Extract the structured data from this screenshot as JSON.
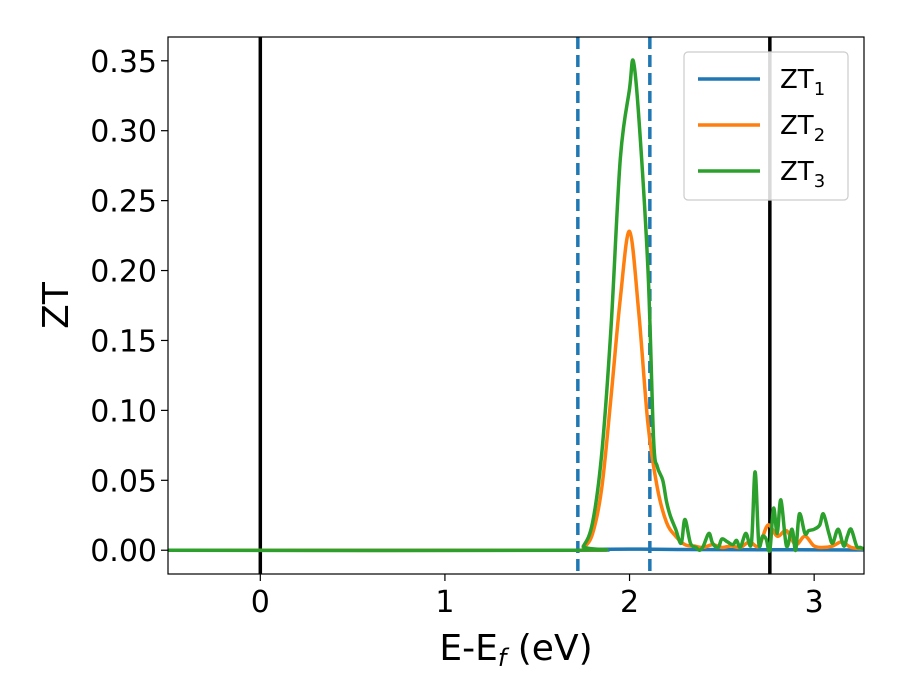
{
  "chart_data": {
    "type": "line",
    "xlabel": {
      "main": "E-E",
      "sub": "f",
      "suffix": " (eV)"
    },
    "ylabel": "ZT",
    "xlim": [
      -0.5,
      3.27
    ],
    "ylim": [
      -0.017,
      0.367
    ],
    "xticks": [
      0,
      1,
      2,
      3
    ],
    "xtick_labels": [
      "0",
      "1",
      "2",
      "3"
    ],
    "yticks": [
      0.0,
      0.05,
      0.1,
      0.15,
      0.2,
      0.25,
      0.3,
      0.35
    ],
    "ytick_labels": [
      "0.00",
      "0.05",
      "0.10",
      "0.15",
      "0.20",
      "0.25",
      "0.30",
      "0.35"
    ],
    "grid": false,
    "legend_position": "top-right",
    "vlines": [
      {
        "x": 0.0,
        "style": "solid",
        "color": "#000000"
      },
      {
        "x": 2.76,
        "style": "solid",
        "color": "#000000"
      },
      {
        "x": 1.72,
        "style": "dashed",
        "color": "#1f77b4"
      },
      {
        "x": 2.11,
        "style": "dashed",
        "color": "#1f77b4"
      }
    ],
    "series": [
      {
        "name": "ZT",
        "name_sub": "1",
        "color": "#1f77b4",
        "x": [
          -0.5,
          1.7,
          1.8,
          2.0,
          2.2,
          2.5,
          3.27
        ],
        "y": [
          0.0,
          0.0,
          0.0006,
          0.0008,
          0.0006,
          0.0004,
          0.0002
        ]
      },
      {
        "name": "ZT",
        "name_sub": "2",
        "color": "#ff7f0e",
        "x": [
          -0.5,
          1.7,
          1.75,
          1.8,
          1.85,
          1.9,
          1.95,
          2.0,
          2.05,
          2.1,
          2.15,
          2.2,
          2.25,
          2.3,
          2.35,
          2.4,
          2.45,
          2.5,
          2.55,
          2.6,
          2.65,
          2.7,
          2.75,
          2.8,
          2.85,
          2.9,
          2.95,
          3.0,
          3.05,
          3.1,
          3.15,
          3.2,
          3.27
        ],
        "y": [
          0.0,
          0.0,
          0.002,
          0.012,
          0.045,
          0.11,
          0.18,
          0.228,
          0.17,
          0.09,
          0.045,
          0.02,
          0.01,
          0.004,
          0.003,
          0.002,
          0.004,
          0.002,
          0.003,
          0.002,
          0.006,
          0.003,
          0.018,
          0.01,
          0.014,
          0.004,
          0.01,
          0.003,
          0.002,
          0.003,
          0.006,
          0.002,
          0.001
        ]
      },
      {
        "name": "ZT",
        "name_sub": "3",
        "color": "#2ca02c",
        "x": [
          -0.5,
          1.7,
          1.75,
          1.8,
          1.85,
          1.9,
          1.95,
          2.0,
          2.02,
          2.05,
          2.1,
          2.13,
          2.15,
          2.18,
          2.2,
          2.22,
          2.25,
          2.28,
          2.3,
          2.33,
          2.36,
          2.38,
          2.4,
          2.43,
          2.45,
          2.48,
          2.5,
          2.53,
          2.56,
          2.58,
          2.6,
          2.63,
          2.66,
          2.68,
          2.7,
          2.72,
          2.74,
          2.76,
          2.78,
          2.8,
          2.82,
          2.85,
          2.88,
          2.9,
          2.92,
          2.95,
          2.97,
          3.0,
          3.03,
          3.05,
          3.08,
          3.1,
          3.13,
          3.16,
          3.18,
          3.2,
          3.23,
          3.25,
          3.27
        ],
        "y": [
          0.0,
          0.0,
          0.003,
          0.02,
          0.07,
          0.16,
          0.28,
          0.33,
          0.35,
          0.31,
          0.2,
          0.08,
          0.06,
          0.05,
          0.035,
          0.025,
          0.015,
          0.005,
          0.022,
          0.005,
          0.002,
          0.0,
          0.003,
          0.012,
          0.005,
          0.002,
          0.008,
          0.006,
          0.004,
          0.007,
          0.002,
          0.012,
          0.005,
          0.056,
          0.005,
          0.01,
          0.008,
          0.0,
          0.03,
          0.012,
          0.036,
          0.003,
          0.015,
          0.0,
          0.026,
          0.012,
          0.014,
          0.015,
          0.018,
          0.026,
          0.012,
          0.005,
          0.015,
          0.003,
          0.01,
          0.015,
          0.003,
          0.002,
          0.001
        ]
      }
    ]
  }
}
